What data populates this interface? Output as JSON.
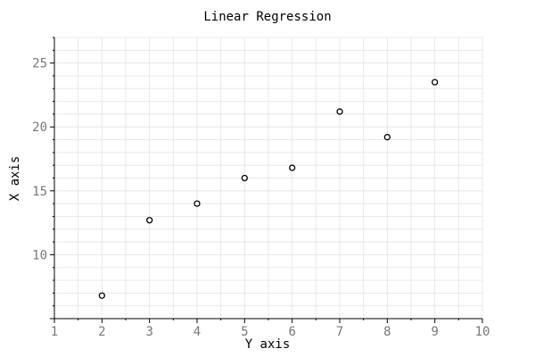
{
  "chart_data": {
    "type": "scatter",
    "title": "Linear Regression",
    "xlabel": "Y axis",
    "ylabel": "X axis",
    "xlim": [
      1,
      10
    ],
    "ylim": [
      5,
      27
    ],
    "x_ticks": [
      1,
      2,
      3,
      4,
      5,
      6,
      7,
      8,
      9,
      10
    ],
    "y_ticks": [
      10,
      15,
      20,
      25
    ],
    "grid": true,
    "series": [
      {
        "x": [
          2,
          3,
          4,
          5,
          6,
          7,
          8,
          9
        ],
        "y": [
          6.8,
          12.7,
          14.0,
          16.0,
          16.8,
          21.2,
          19.2,
          23.5
        ]
      }
    ],
    "colors": {
      "point_stroke": "#000000",
      "point_fill": "#ffffff",
      "grid": "#e8e8e8",
      "tick_label": "#777777"
    }
  }
}
